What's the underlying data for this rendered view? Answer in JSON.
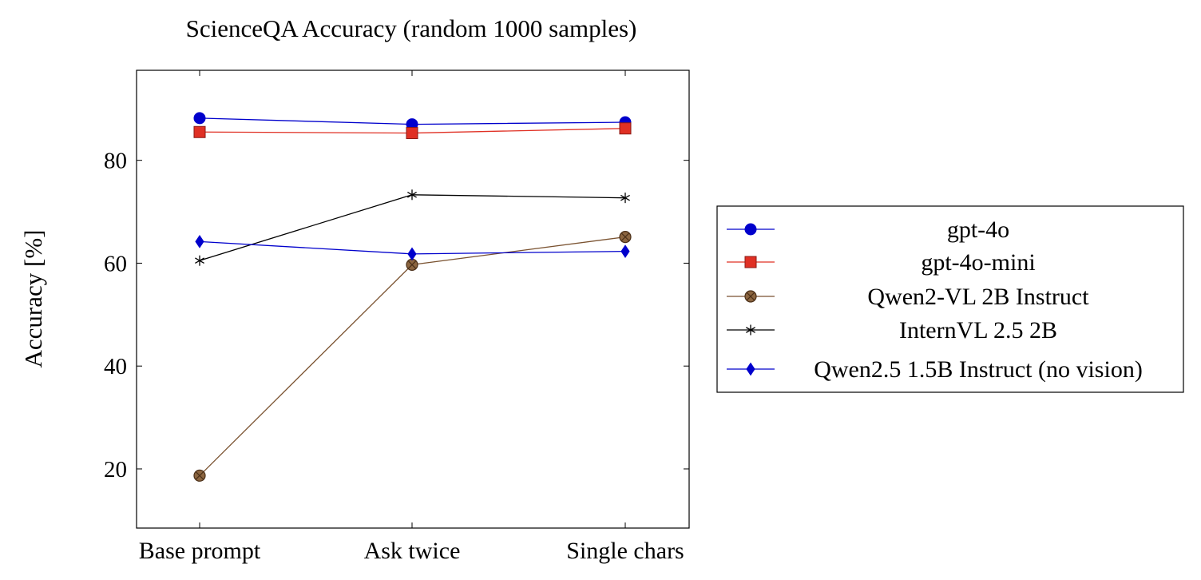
{
  "chart_data": {
    "type": "line",
    "title": "ScienceQA Accuracy (random 1000 samples)",
    "xlabel": "",
    "ylabel": "Accuracy [%]",
    "categories": [
      "Base prompt",
      "Ask twice",
      "Single chars"
    ],
    "ylim": [
      8.5,
      97.5
    ],
    "yticks": [
      20,
      40,
      60,
      80
    ],
    "grid": false,
    "legend_position": "right, outside plot",
    "series": [
      {
        "name": "gpt-4o",
        "values": [
          88.2,
          87.0,
          87.4
        ],
        "color": "#0000cc",
        "marker": "circle"
      },
      {
        "name": "gpt-4o-mini",
        "values": [
          85.5,
          85.3,
          86.2
        ],
        "color": "#e03024",
        "marker": "square"
      },
      {
        "name": "Qwen2-VL 2B Instruct",
        "values": [
          18.7,
          59.7,
          65.1
        ],
        "color": "#7a5230",
        "marker": "otimes"
      },
      {
        "name": "InternVL 2.5 2B",
        "values": [
          60.5,
          73.3,
          72.7
        ],
        "color": "#000000",
        "marker": "asterisk"
      },
      {
        "name": "Qwen2.5 1.5B Instruct (no vision)",
        "values": [
          64.2,
          61.8,
          62.3
        ],
        "color": "#0000cc",
        "marker": "diamond"
      }
    ]
  }
}
